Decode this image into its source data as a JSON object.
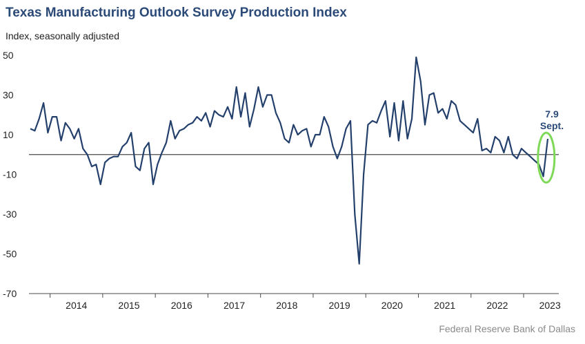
{
  "chart_data": {
    "type": "line",
    "title": "Texas Manufacturing Outlook Survey Production Index",
    "subtitle": "Index, seasonally adjusted",
    "source": "Federal Reserve Bank of Dallas",
    "ylim": [
      -70,
      50
    ],
    "yticks": [
      50,
      30,
      10,
      -10,
      -30,
      -50,
      -70
    ],
    "xticks": [
      "2014",
      "2015",
      "2016",
      "2017",
      "2018",
      "2019",
      "2020",
      "2021",
      "2022",
      "2023"
    ],
    "start": "2013-08",
    "series": [
      {
        "name": "Production Index",
        "color": "#233f6b",
        "values": [
          13,
          12,
          18,
          26,
          11,
          19,
          19,
          7,
          16,
          13,
          8,
          13,
          3,
          0,
          -6,
          -5,
          -15,
          -4,
          -2,
          -1,
          -1,
          4,
          6,
          11,
          -6,
          -8,
          3,
          6,
          -15,
          -5,
          1,
          6,
          17,
          8,
          12,
          13,
          15,
          16,
          19,
          17,
          21,
          14,
          22,
          20,
          19,
          24,
          18,
          34,
          19,
          31,
          14,
          23,
          34,
          24,
          30,
          30,
          21,
          16,
          8,
          6,
          15,
          10,
          12,
          13,
          4,
          10,
          10,
          19,
          14,
          4,
          -2,
          4,
          13,
          17,
          -30,
          -55,
          -10,
          15,
          17,
          16,
          22,
          27,
          9,
          26,
          7,
          27,
          8,
          18,
          49,
          37,
          15,
          30,
          31,
          21,
          23,
          18,
          27,
          25,
          17,
          15,
          13,
          11,
          18,
          2,
          3,
          1,
          9,
          7,
          1,
          9,
          0,
          -2,
          3,
          1,
          -1,
          -3,
          -5,
          -11,
          7.9
        ]
      }
    ],
    "annotation": {
      "value_label": "7.9",
      "month_label": "Sept.",
      "highlight_color": "#7ed957"
    }
  }
}
